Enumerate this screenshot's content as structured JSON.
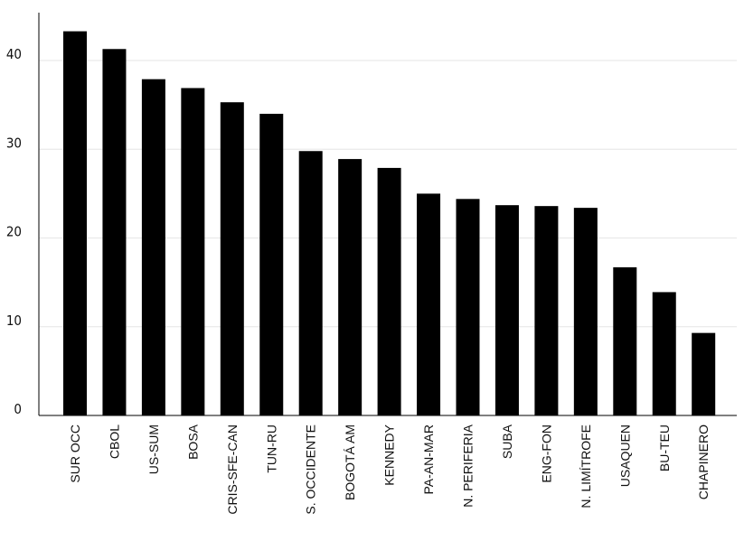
{
  "chart_data": {
    "type": "bar",
    "categories": [
      "SUR OCC",
      "CBOL",
      "US-SUM",
      "BOSA",
      "CRIS-SFE-CAN",
      "TUN-RU",
      "S. OCCIDENTE",
      "BOGOTÁ AM",
      "KENNEDY",
      "PA-AN-MAR",
      "N. PERIFERIA",
      "SUBA",
      "ENG-FON",
      "N. LIMÍTROFE",
      "USAQUEN",
      "BU-TEU",
      "CHAPINERO"
    ],
    "values": [
      43.3,
      41.3,
      37.9,
      36.9,
      35.3,
      34.0,
      29.8,
      28.9,
      27.9,
      25.0,
      24.4,
      23.7,
      23.6,
      23.4,
      16.7,
      13.9,
      9.3
    ],
    "color": "#000000",
    "ylim": [
      0,
      45.4
    ],
    "yticks": [
      0,
      10,
      20,
      30,
      40
    ],
    "grid": true
  }
}
